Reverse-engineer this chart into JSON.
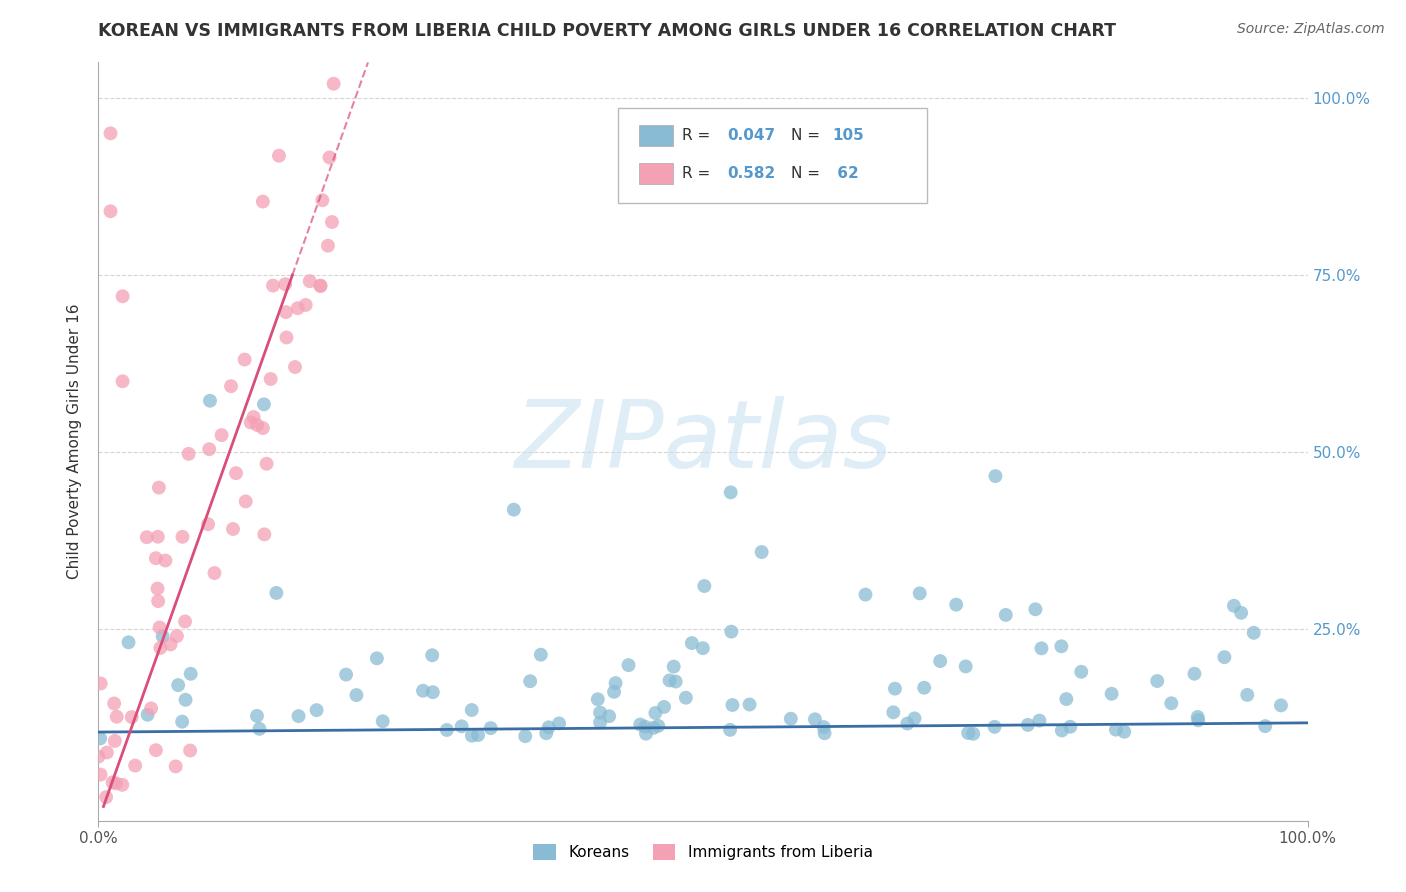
{
  "title": "KOREAN VS IMMIGRANTS FROM LIBERIA CHILD POVERTY AMONG GIRLS UNDER 16 CORRELATION CHART",
  "source": "Source: ZipAtlas.com",
  "ylabel": "Child Poverty Among Girls Under 16",
  "xlim": [
    0,
    1.0
  ],
  "ylim": [
    -0.02,
    1.05
  ],
  "xtick_positions": [
    0.0,
    1.0
  ],
  "xtick_labels": [
    "0.0%",
    "100.0%"
  ],
  "ytick_positions": [
    0.25,
    0.5,
    0.75,
    1.0
  ],
  "ytick_labels_right": [
    "25.0%",
    "50.0%",
    "75.0%",
    "100.0%"
  ],
  "watermark_text": "ZIPatlas",
  "group1_name": "Koreans",
  "group1_color": "#89bcd4",
  "group1_line_color": "#3a6ea5",
  "group1_R": 0.047,
  "group1_N": 105,
  "group2_name": "Immigrants from Liberia",
  "group2_color": "#f4a0b5",
  "group2_line_color": "#d94f7a",
  "group2_R": 0.582,
  "group2_N": 62,
  "background_color": "#ffffff",
  "grid_color": "#cccccc",
  "right_axis_color": "#5599cc",
  "title_color": "#333333",
  "source_color": "#666666"
}
